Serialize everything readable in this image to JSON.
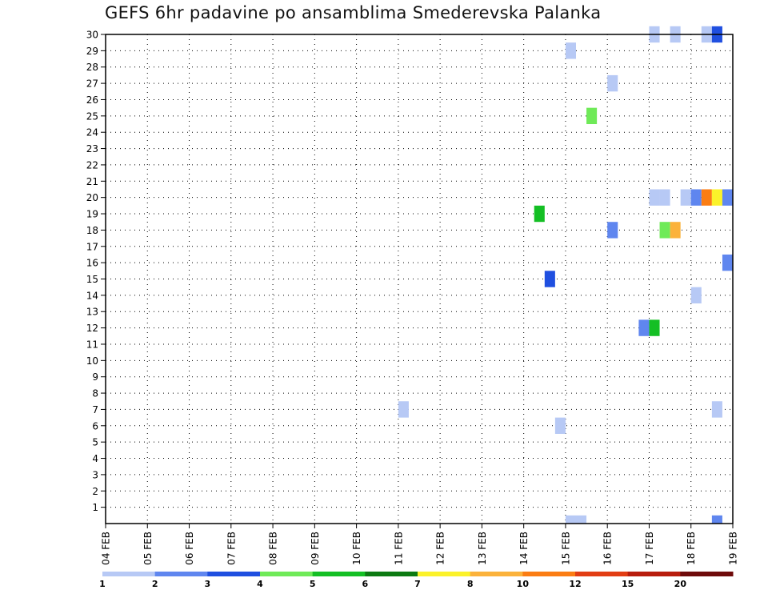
{
  "chart_data": {
    "type": "heatmap",
    "title": "GEFS 6hr padavine po ansamblima Smederevska Palanka",
    "y_ticks": [
      "1",
      "2",
      "3",
      "4",
      "5",
      "6",
      "7",
      "8",
      "9",
      "10",
      "11",
      "12",
      "13",
      "14",
      "15",
      "16",
      "17",
      "18",
      "19",
      "20",
      "21",
      "22",
      "23",
      "24",
      "25",
      "26",
      "27",
      "28",
      "29",
      "30"
    ],
    "y_range": [
      0,
      30
    ],
    "x_ticks": [
      "04 FEB",
      "05 FEB",
      "06 FEB",
      "07 FEB",
      "08 FEB",
      "09 FEB",
      "10 FEB",
      "11 FEB",
      "12 FEB",
      "13 FEB",
      "14 FEB",
      "15 FEB",
      "16 FEB",
      "17 FEB",
      "18 FEB",
      "19 FEB"
    ],
    "x_range_days": [
      0,
      15
    ],
    "grid": true,
    "legend": {
      "placement": "bottom",
      "colors": [
        "#b7c9f5",
        "#5f86ef",
        "#1f4fe0",
        "#6fea58",
        "#14bf24",
        "#0c7a12",
        "#fbf22a",
        "#fbb23b",
        "#fb7d13",
        "#e23d13",
        "#b81d0d",
        "#6e0a0a"
      ],
      "labels": [
        "1",
        "2",
        "3",
        "4",
        "5",
        "6",
        "7",
        "8",
        "10",
        "12",
        "15",
        "20"
      ]
    },
    "cells": [
      {
        "member": 30,
        "day": 13.0,
        "level": 0
      },
      {
        "member": 30,
        "day": 13.5,
        "level": 0
      },
      {
        "member": 30,
        "day": 14.25,
        "level": 0
      },
      {
        "member": 30,
        "day": 14.5,
        "level": 2
      },
      {
        "member": 29,
        "day": 11.0,
        "level": 0
      },
      {
        "member": 27,
        "day": 12.0,
        "level": 0
      },
      {
        "member": 25,
        "day": 11.5,
        "level": 3
      },
      {
        "member": 20,
        "day": 13.0,
        "level": 0
      },
      {
        "member": 20,
        "day": 13.25,
        "level": 0
      },
      {
        "member": 20,
        "day": 13.75,
        "level": 0
      },
      {
        "member": 20,
        "day": 14.0,
        "level": 1
      },
      {
        "member": 20,
        "day": 14.25,
        "level": 8
      },
      {
        "member": 20,
        "day": 14.5,
        "level": 6
      },
      {
        "member": 20,
        "day": 14.75,
        "level": 1
      },
      {
        "member": 19,
        "day": 10.25,
        "level": 4
      },
      {
        "member": 18,
        "day": 12.0,
        "level": 1
      },
      {
        "member": 18,
        "day": 13.25,
        "level": 3
      },
      {
        "member": 18,
        "day": 13.5,
        "level": 7
      },
      {
        "member": 16,
        "day": 14.75,
        "level": 1
      },
      {
        "member": 15,
        "day": 10.5,
        "level": 2
      },
      {
        "member": 14,
        "day": 14.0,
        "level": 0
      },
      {
        "member": 12,
        "day": 12.75,
        "level": 1
      },
      {
        "member": 12,
        "day": 13.0,
        "level": 4
      },
      {
        "member": 7,
        "day": 7.0,
        "level": 0
      },
      {
        "member": 7,
        "day": 14.5,
        "level": 0
      },
      {
        "member": 6,
        "day": 10.75,
        "level": 0
      },
      {
        "member": 0,
        "day": 11.0,
        "level": 0
      },
      {
        "member": 0,
        "day": 11.25,
        "level": 0
      },
      {
        "member": 0,
        "day": 14.5,
        "level": 1
      }
    ]
  }
}
